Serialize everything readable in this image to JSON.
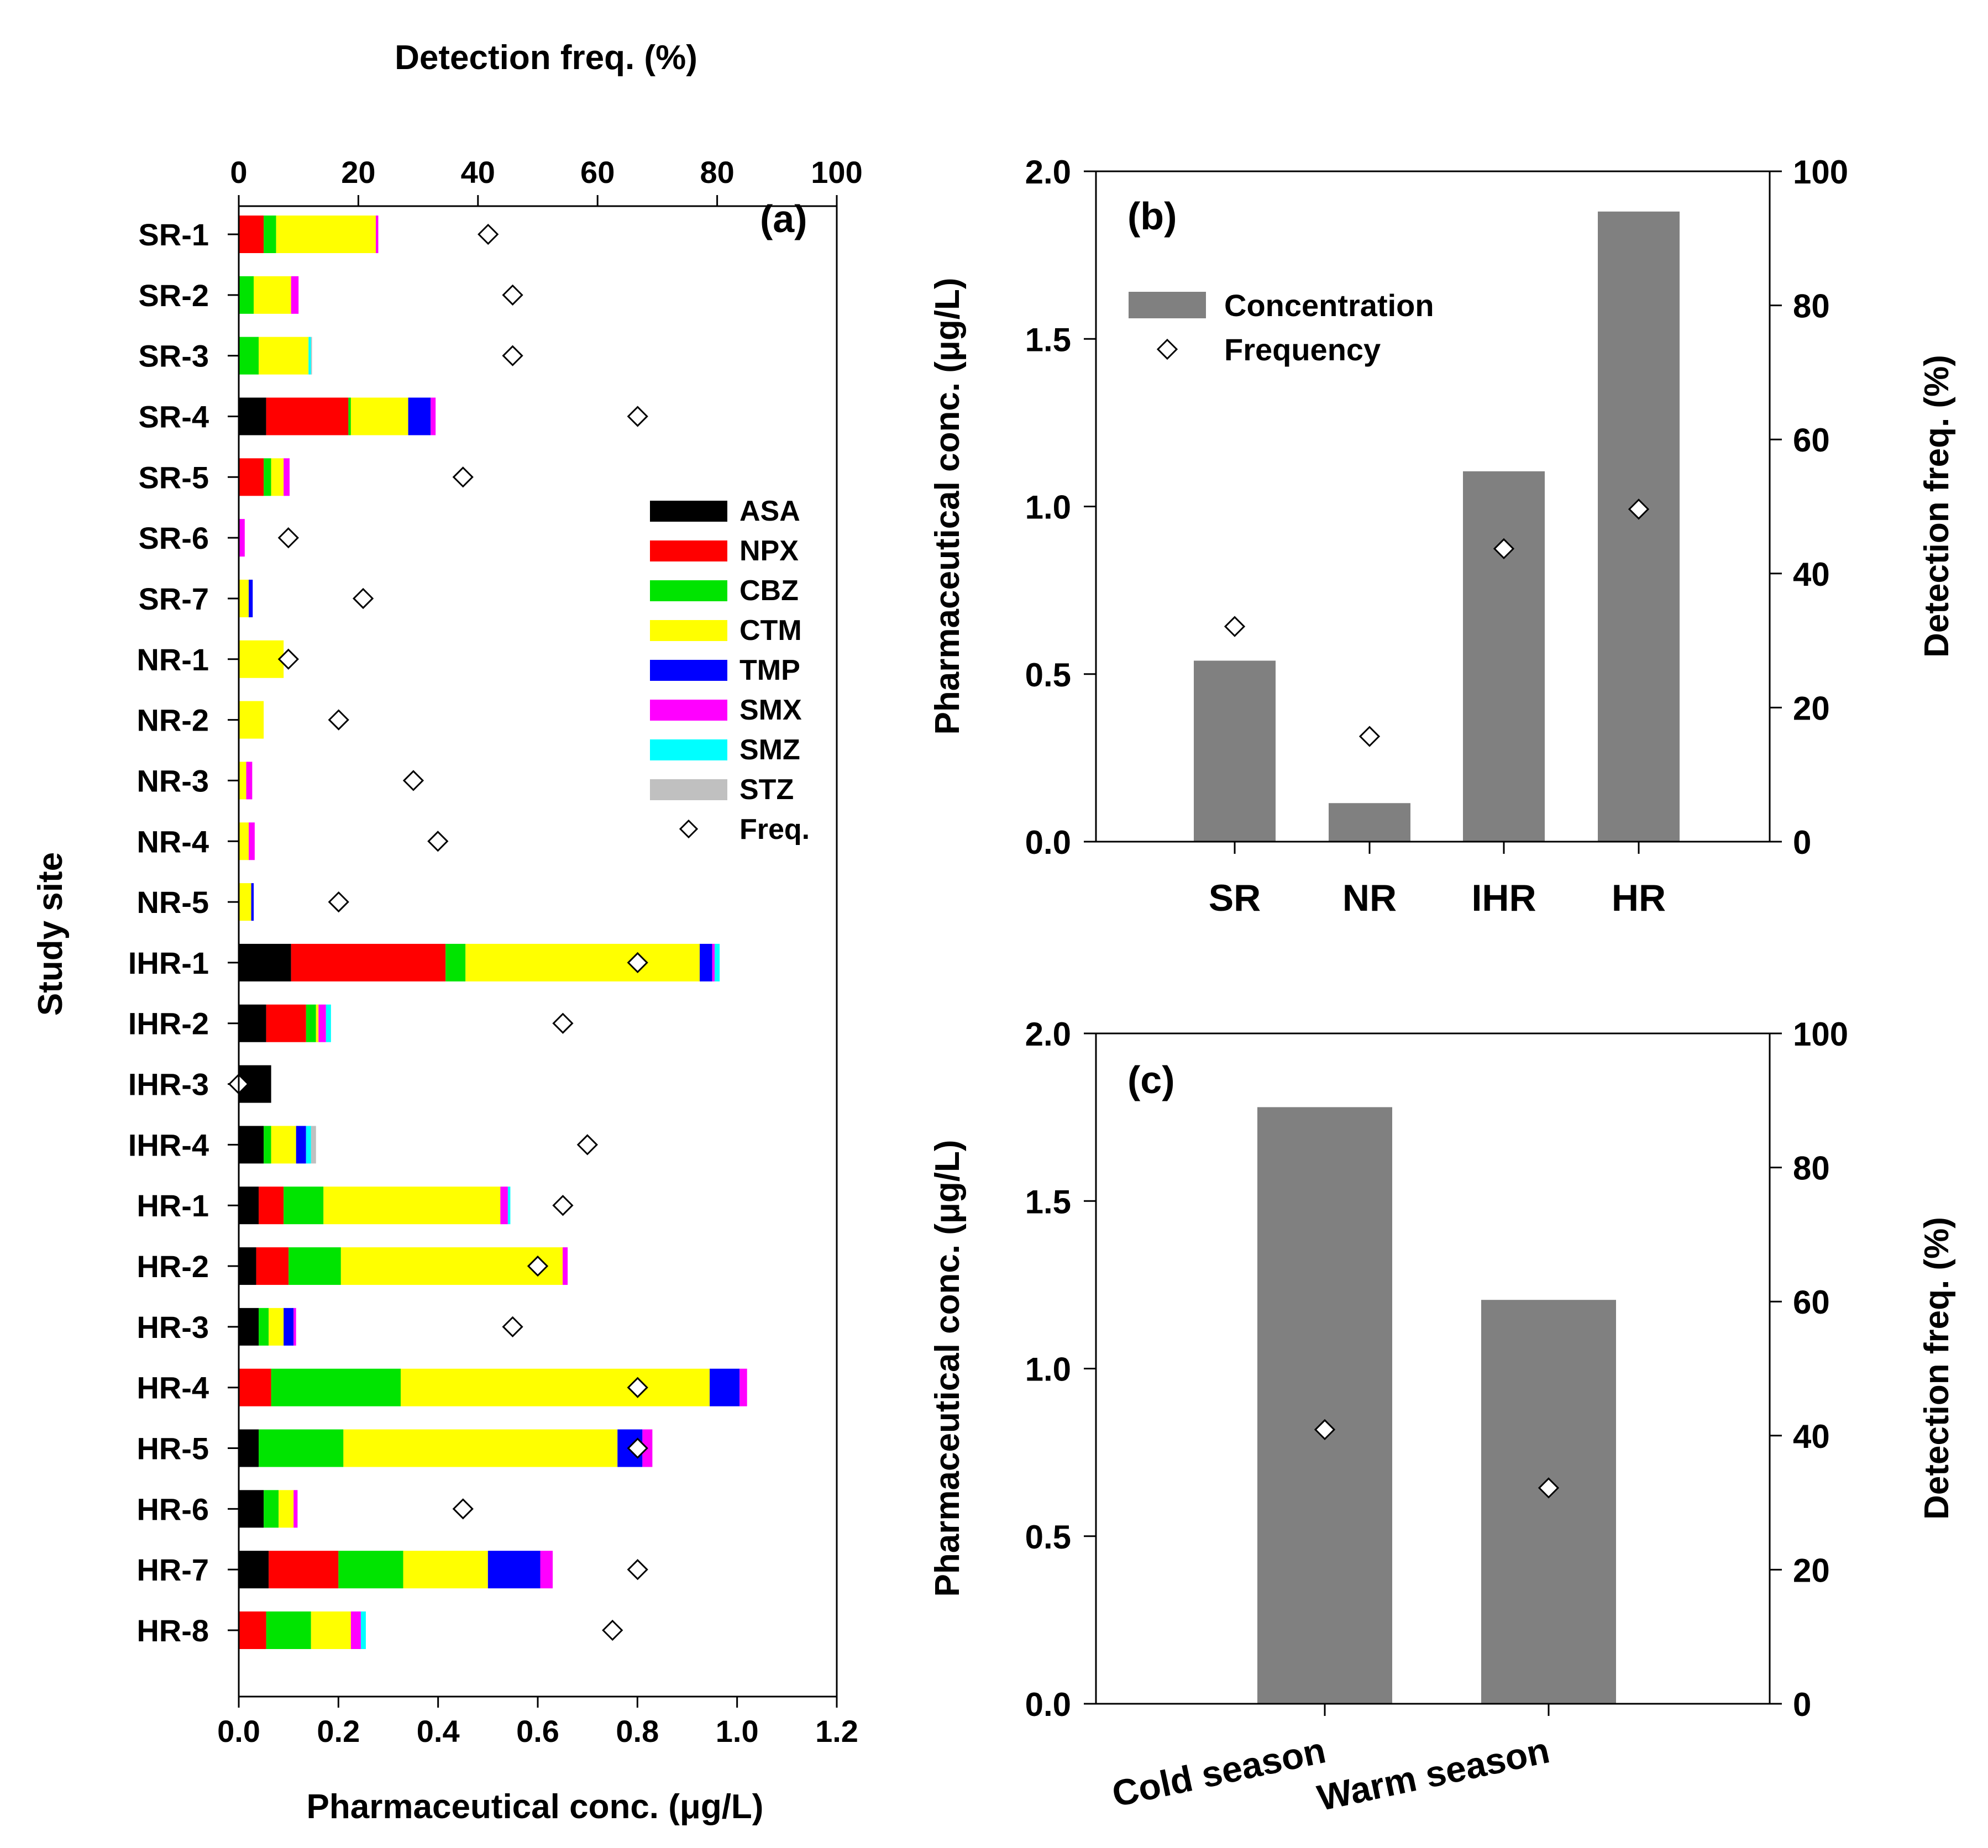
{
  "chart_data": [
    {
      "panel": "a",
      "type": "stacked-bar-horizontal",
      "panel_label": "(a)",
      "ylabel": "Study site",
      "xlabel": "Pharmaceutical conc. (μg/L)",
      "x2label": "Detection freq. (%)",
      "xlim": [
        0,
        1.2
      ],
      "x2lim": [
        0,
        100
      ],
      "xticks": [
        "0.0",
        "0.2",
        "0.4",
        "0.6",
        "0.8",
        "1.0",
        "1.2"
      ],
      "x2ticks": [
        "0",
        "20",
        "40",
        "60",
        "80",
        "100"
      ],
      "series": [
        {
          "name": "ASA",
          "color": "#000000"
        },
        {
          "name": "NPX",
          "color": "#ff0000"
        },
        {
          "name": "CBZ",
          "color": "#00e400"
        },
        {
          "name": "CTM",
          "color": "#ffff00"
        },
        {
          "name": "TMP",
          "color": "#0000ff"
        },
        {
          "name": "SMX",
          "color": "#ff00ff"
        },
        {
          "name": "SMZ",
          "color": "#00ffff"
        },
        {
          "name": "STZ",
          "color": "#c0c0c0"
        }
      ],
      "freq_legend": "Freq.",
      "categories": [
        "SR-1",
        "SR-2",
        "SR-3",
        "SR-4",
        "SR-5",
        "SR-6",
        "SR-7",
        "NR-1",
        "NR-2",
        "NR-3",
        "NR-4",
        "NR-5",
        "IHR-1",
        "IHR-2",
        "IHR-3",
        "IHR-4",
        "HR-1",
        "HR-2",
        "HR-3",
        "HR-4",
        "HR-5",
        "HR-6",
        "HR-7",
        "HR-8"
      ],
      "values": [
        [
          0,
          0.05,
          0.025,
          0.2,
          0,
          0.005,
          0,
          0
        ],
        [
          0,
          0,
          0.03,
          0.075,
          0,
          0.015,
          0,
          0
        ],
        [
          0,
          0,
          0.04,
          0.1,
          0,
          0,
          0.005,
          0.002
        ],
        [
          0.055,
          0.165,
          0.005,
          0.115,
          0.045,
          0.01,
          0,
          0
        ],
        [
          0,
          0.05,
          0.015,
          0.025,
          0,
          0.012,
          0,
          0
        ],
        [
          0,
          0,
          0,
          0,
          0,
          0.012,
          0,
          0
        ],
        [
          0,
          0,
          0,
          0.02,
          0.008,
          0,
          0,
          0
        ],
        [
          0,
          0,
          0,
          0.09,
          0,
          0,
          0,
          0
        ],
        [
          0,
          0,
          0,
          0.05,
          0,
          0,
          0,
          0
        ],
        [
          0,
          0,
          0,
          0.015,
          0,
          0.012,
          0,
          0
        ],
        [
          0,
          0,
          0,
          0.02,
          0,
          0.012,
          0,
          0
        ],
        [
          0,
          0,
          0,
          0.025,
          0.005,
          0,
          0,
          0
        ],
        [
          0.105,
          0.31,
          0.04,
          0.47,
          0.025,
          0.005,
          0.01,
          0
        ],
        [
          0.055,
          0.08,
          0.02,
          0.005,
          0,
          0.015,
          0.01,
          0
        ],
        [
          0.065,
          0,
          0,
          0,
          0,
          0,
          0,
          0
        ],
        [
          0.05,
          0,
          0.015,
          0.05,
          0.02,
          0,
          0.01,
          0.01
        ],
        [
          0.04,
          0.05,
          0.08,
          0.355,
          0,
          0.015,
          0.005,
          0
        ],
        [
          0.035,
          0.065,
          0.105,
          0.445,
          0,
          0.01,
          0,
          0
        ],
        [
          0.04,
          0,
          0.02,
          0.03,
          0.02,
          0.005,
          0,
          0
        ],
        [
          0,
          0.065,
          0.26,
          0.62,
          0.06,
          0.015,
          0,
          0
        ],
        [
          0.04,
          0,
          0.17,
          0.55,
          0.05,
          0.02,
          0,
          0
        ],
        [
          0.05,
          0,
          0.03,
          0.03,
          0,
          0.008,
          0,
          0
        ],
        [
          0.06,
          0.14,
          0.13,
          0.17,
          0.105,
          0.025,
          0,
          0
        ],
        [
          0,
          0.055,
          0.09,
          0.08,
          0,
          0.02,
          0.01,
          0
        ]
      ],
      "frequency": [
        41.7,
        45.8,
        45.8,
        66.7,
        37.5,
        8.3,
        20.8,
        8.3,
        16.7,
        29.2,
        33.3,
        16.7,
        66.7,
        54.2,
        0,
        58.3,
        54.2,
        50.0,
        45.8,
        66.7,
        66.7,
        37.5,
        66.7,
        62.5
      ]
    },
    {
      "panel": "b",
      "type": "bar",
      "panel_label": "(b)",
      "ylabel": "Pharmaceutical conc. (μg/L)",
      "y2label": "Detection freq. (%)",
      "ylim": [
        0,
        2.0
      ],
      "y2lim": [
        0,
        100
      ],
      "yticks": [
        "0.0",
        "0.5",
        "1.0",
        "1.5",
        "2.0"
      ],
      "y2ticks": [
        "0",
        "20",
        "40",
        "60",
        "80",
        "100"
      ],
      "categories": [
        "SR",
        "NR",
        "IHR",
        "HR"
      ],
      "values": [
        0.54,
        0.115,
        1.105,
        1.88
      ],
      "frequency": [
        32.1,
        15.7,
        43.7,
        49.6
      ],
      "legend": {
        "bar": "Concentration",
        "marker": "Frequency"
      },
      "bar_color": "#808080"
    },
    {
      "panel": "c",
      "type": "bar",
      "panel_label": "(c)",
      "ylabel": "Pharmaceutical conc. (μg/L)",
      "y2label": "Detection freq. (%)",
      "ylim": [
        0,
        2.0
      ],
      "y2lim": [
        0,
        100
      ],
      "yticks": [
        "0.0",
        "0.5",
        "1.0",
        "1.5",
        "2.0"
      ],
      "y2ticks": [
        "0",
        "20",
        "40",
        "60",
        "80",
        "100"
      ],
      "categories": [
        "Cold season",
        "Warm season"
      ],
      "values": [
        1.78,
        1.205
      ],
      "frequency": [
        40.9,
        32.2
      ],
      "bar_color": "#808080"
    }
  ]
}
